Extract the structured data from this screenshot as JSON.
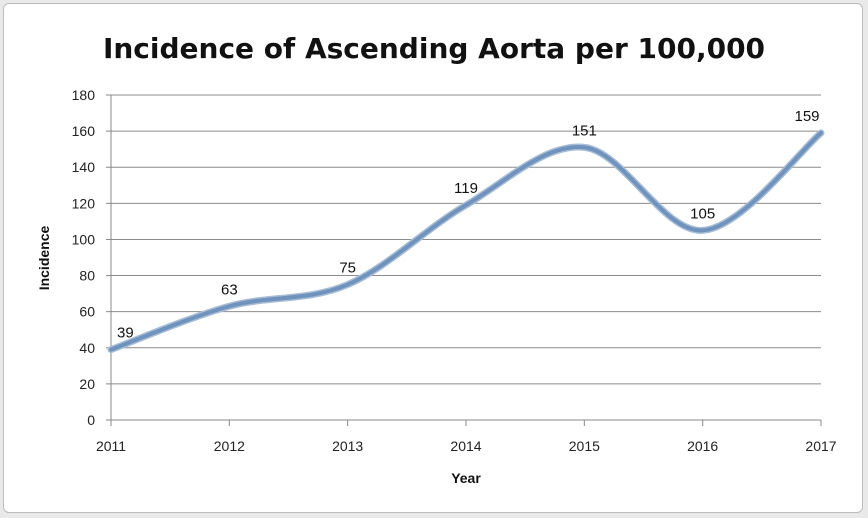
{
  "chart_data": {
    "type": "line",
    "title": "Incidence of Ascending Aorta per 100,000",
    "xlabel": "Year",
    "ylabel": "Incidence",
    "categories": [
      "2011",
      "2012",
      "2013",
      "2014",
      "2015",
      "2016",
      "2017"
    ],
    "series": [
      {
        "values": [
          39,
          63,
          75,
          119,
          151,
          105,
          159
        ],
        "color": "#6f93bd"
      }
    ],
    "ylim": [
      0,
      180
    ],
    "yticks": [
      0,
      20,
      40,
      60,
      80,
      100,
      120,
      140,
      160,
      180
    ],
    "grid": true,
    "smooth": true,
    "data_labels": true
  }
}
